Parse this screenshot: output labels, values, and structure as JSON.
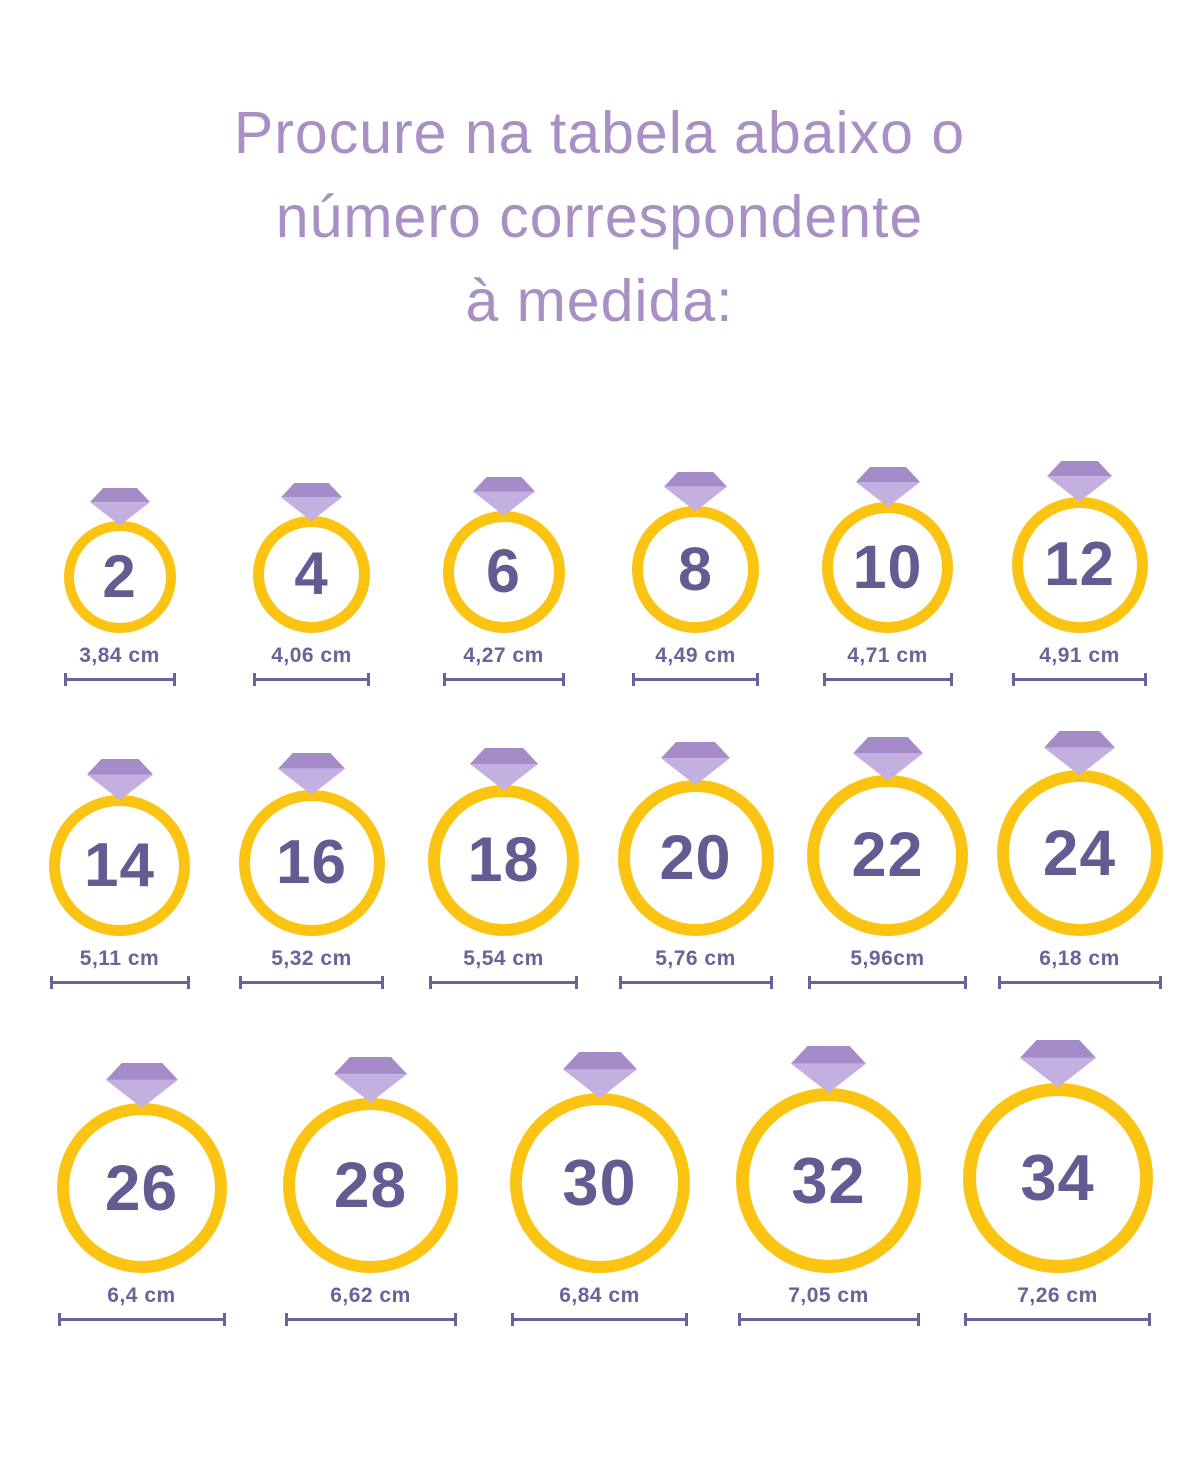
{
  "title": {
    "lines": [
      "Procure na tabela abaixo o",
      "número correspondente",
      "à medida:"
    ]
  },
  "colors": {
    "background": "#ffffff",
    "title_text": "#a88fc4",
    "ring_gold": "#fbc413",
    "size_number": "#655a92",
    "diamond_crown": "#a58cc9",
    "diamond_pavilion": "#c4afe1",
    "measurement": "#6c6199"
  },
  "icons": {
    "ring_gem": "diamond-gem-icon"
  },
  "rows": [
    {
      "rings": [
        {
          "size": "2",
          "measurement": "3,84 cm"
        },
        {
          "size": "4",
          "measurement": "4,06 cm"
        },
        {
          "size": "6",
          "measurement": "4,27 cm"
        },
        {
          "size": "8",
          "measurement": "4,49 cm"
        },
        {
          "size": "10",
          "measurement": "4,71 cm"
        },
        {
          "size": "12",
          "measurement": "4,91 cm"
        }
      ]
    },
    {
      "rings": [
        {
          "size": "14",
          "measurement": "5,11 cm"
        },
        {
          "size": "16",
          "measurement": "5,32 cm"
        },
        {
          "size": "18",
          "measurement": "5,54 cm"
        },
        {
          "size": "20",
          "measurement": "5,76 cm"
        },
        {
          "size": "22",
          "measurement": "5,96cm"
        },
        {
          "size": "24",
          "measurement": "6,18 cm"
        }
      ]
    },
    {
      "rings": [
        {
          "size": "26",
          "measurement": "6,4 cm"
        },
        {
          "size": "28",
          "measurement": "6,62 cm"
        },
        {
          "size": "30",
          "measurement": "6,84 cm"
        },
        {
          "size": "32",
          "measurement": "7,05 cm"
        },
        {
          "size": "34",
          "measurement": "7,26 cm"
        }
      ]
    }
  ]
}
